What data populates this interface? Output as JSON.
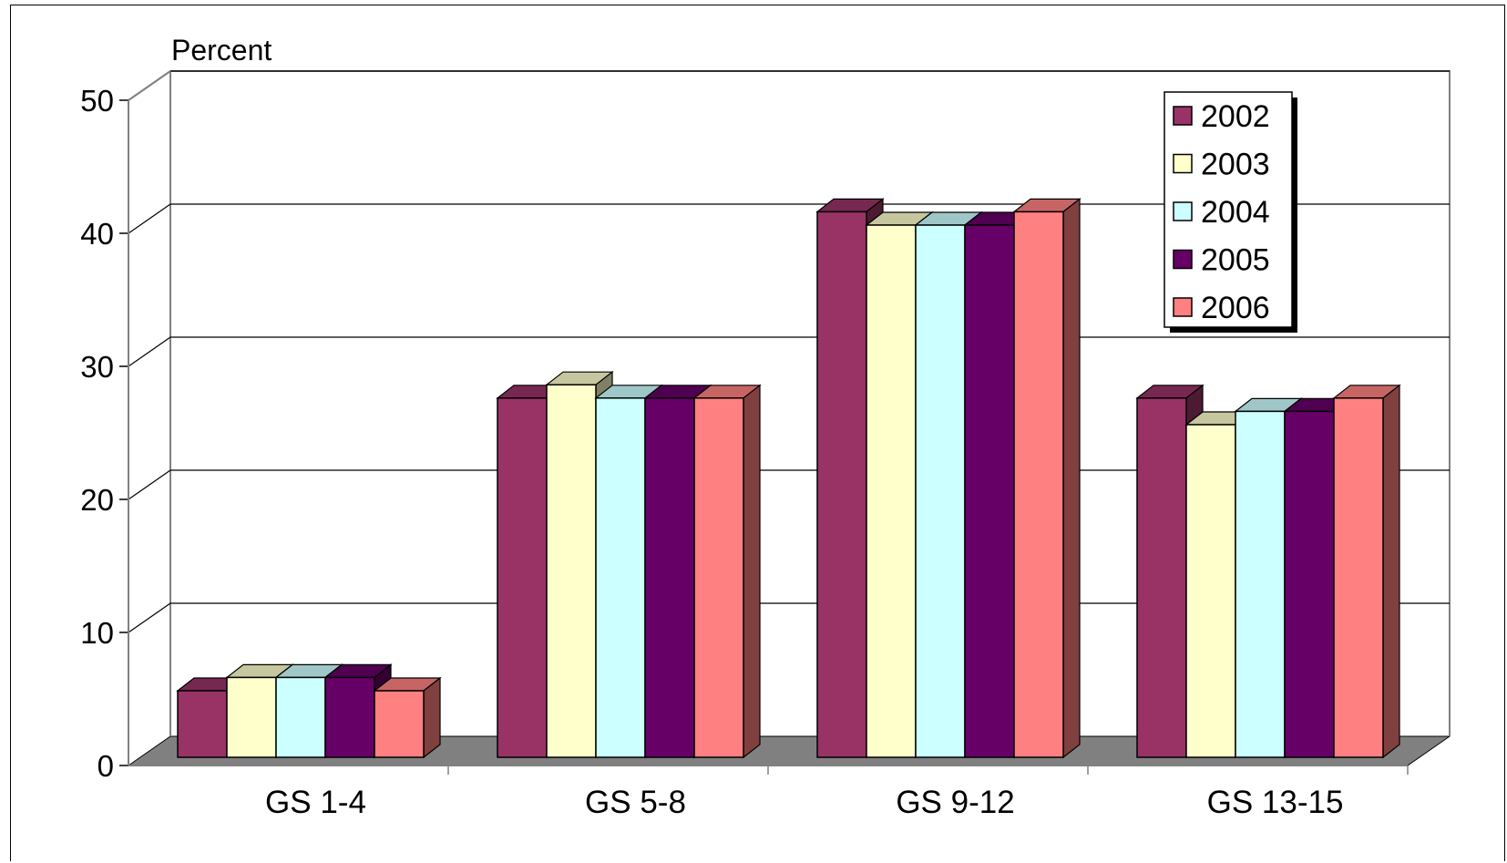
{
  "chart_data": {
    "type": "bar",
    "ylabel": "Percent",
    "xlabel": "",
    "ylim": [
      0,
      50
    ],
    "yticks": [
      0,
      10,
      20,
      30,
      40,
      50
    ],
    "grid": true,
    "legend_position": "top-right",
    "categories": [
      "GS 1-4",
      "GS 5-8",
      "GS 9-12",
      "GS 13-15"
    ],
    "series": [
      {
        "name": "2002",
        "color": "#993366",
        "values": [
          5,
          27,
          41,
          27
        ]
      },
      {
        "name": "2003",
        "color": "#FFFFCC",
        "values": [
          6,
          28,
          40,
          25
        ]
      },
      {
        "name": "2004",
        "color": "#CCFFFF",
        "values": [
          6,
          27,
          40,
          26
        ]
      },
      {
        "name": "2005",
        "color": "#660066",
        "values": [
          6,
          27,
          40,
          26
        ]
      },
      {
        "name": "2006",
        "color": "#FF8080",
        "values": [
          5,
          27,
          41,
          27
        ]
      }
    ]
  }
}
